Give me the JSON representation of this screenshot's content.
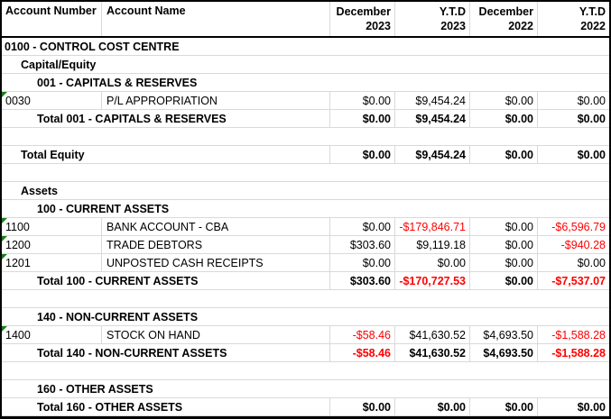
{
  "header": {
    "columns": [
      {
        "label": "Account Number"
      },
      {
        "label": "Account Name"
      },
      {
        "line1": "December",
        "line2": "2023"
      },
      {
        "line1": "Y.T.D",
        "line2": "2023"
      },
      {
        "line1": "December",
        "line2": "2022"
      },
      {
        "line1": "Y.T.D",
        "line2": "2022"
      }
    ]
  },
  "colors": {
    "text": "#000000",
    "negative": "#ff0000",
    "gridline": "#d9d9d9",
    "outer_border": "#000000",
    "error_indicator_green": "#1e7e1e"
  },
  "rows": [
    {
      "type": "section",
      "indent": 0,
      "label": "0100 - CONTROL COST CENTRE"
    },
    {
      "type": "section",
      "indent": 1,
      "label": "Capital/Equity"
    },
    {
      "type": "section",
      "indent": 2,
      "label": "001 - CAPITALS & RESERVES"
    },
    {
      "type": "account",
      "number": "0030",
      "name": "P/L APPROPRIATION",
      "values": [
        "$0.00",
        "$9,454.24",
        "$0.00",
        "$0.00"
      ]
    },
    {
      "type": "total",
      "indent": 2,
      "label": "Total 001 - CAPITALS & RESERVES",
      "values": [
        "$0.00",
        "$9,454.24",
        "$0.00",
        "$0.00"
      ]
    },
    {
      "type": "blank"
    },
    {
      "type": "total",
      "indent": 1,
      "label": "Total Equity",
      "values": [
        "$0.00",
        "$9,454.24",
        "$0.00",
        "$0.00"
      ]
    },
    {
      "type": "blank"
    },
    {
      "type": "section",
      "indent": 1,
      "label": "Assets"
    },
    {
      "type": "section",
      "indent": 2,
      "label": "100 - CURRENT ASSETS"
    },
    {
      "type": "account",
      "number": "1100",
      "name": "BANK ACCOUNT - CBA",
      "values": [
        "$0.00",
        "-$179,846.71",
        "$0.00",
        "-$6,596.79"
      ]
    },
    {
      "type": "account",
      "number": "1200",
      "name": "TRADE DEBTORS",
      "values": [
        "$303.60",
        "$9,119.18",
        "$0.00",
        "-$940.28"
      ]
    },
    {
      "type": "account",
      "number": "1201",
      "name": "UNPOSTED CASH RECEIPTS",
      "values": [
        "$0.00",
        "$0.00",
        "$0.00",
        "$0.00"
      ]
    },
    {
      "type": "total",
      "indent": 2,
      "label": "Total 100 - CURRENT ASSETS",
      "values": [
        "$303.60",
        "-$170,727.53",
        "$0.00",
        "-$7,537.07"
      ]
    },
    {
      "type": "blank"
    },
    {
      "type": "section",
      "indent": 2,
      "label": "140 - NON-CURRENT ASSETS"
    },
    {
      "type": "account",
      "number": "1400",
      "name": "STOCK ON HAND",
      "values": [
        "-$58.46",
        "$41,630.52",
        "$4,693.50",
        "-$1,588.28"
      ]
    },
    {
      "type": "total",
      "indent": 2,
      "label": "Total 140 - NON-CURRENT ASSETS",
      "values": [
        "-$58.46",
        "$41,630.52",
        "$4,693.50",
        "-$1,588.28"
      ]
    },
    {
      "type": "blank"
    },
    {
      "type": "section",
      "indent": 2,
      "label": "160 - OTHER ASSETS"
    },
    {
      "type": "total",
      "indent": 2,
      "label": "Total 160 - OTHER ASSETS",
      "values": [
        "$0.00",
        "$0.00",
        "$0.00",
        "$0.00"
      ]
    }
  ]
}
